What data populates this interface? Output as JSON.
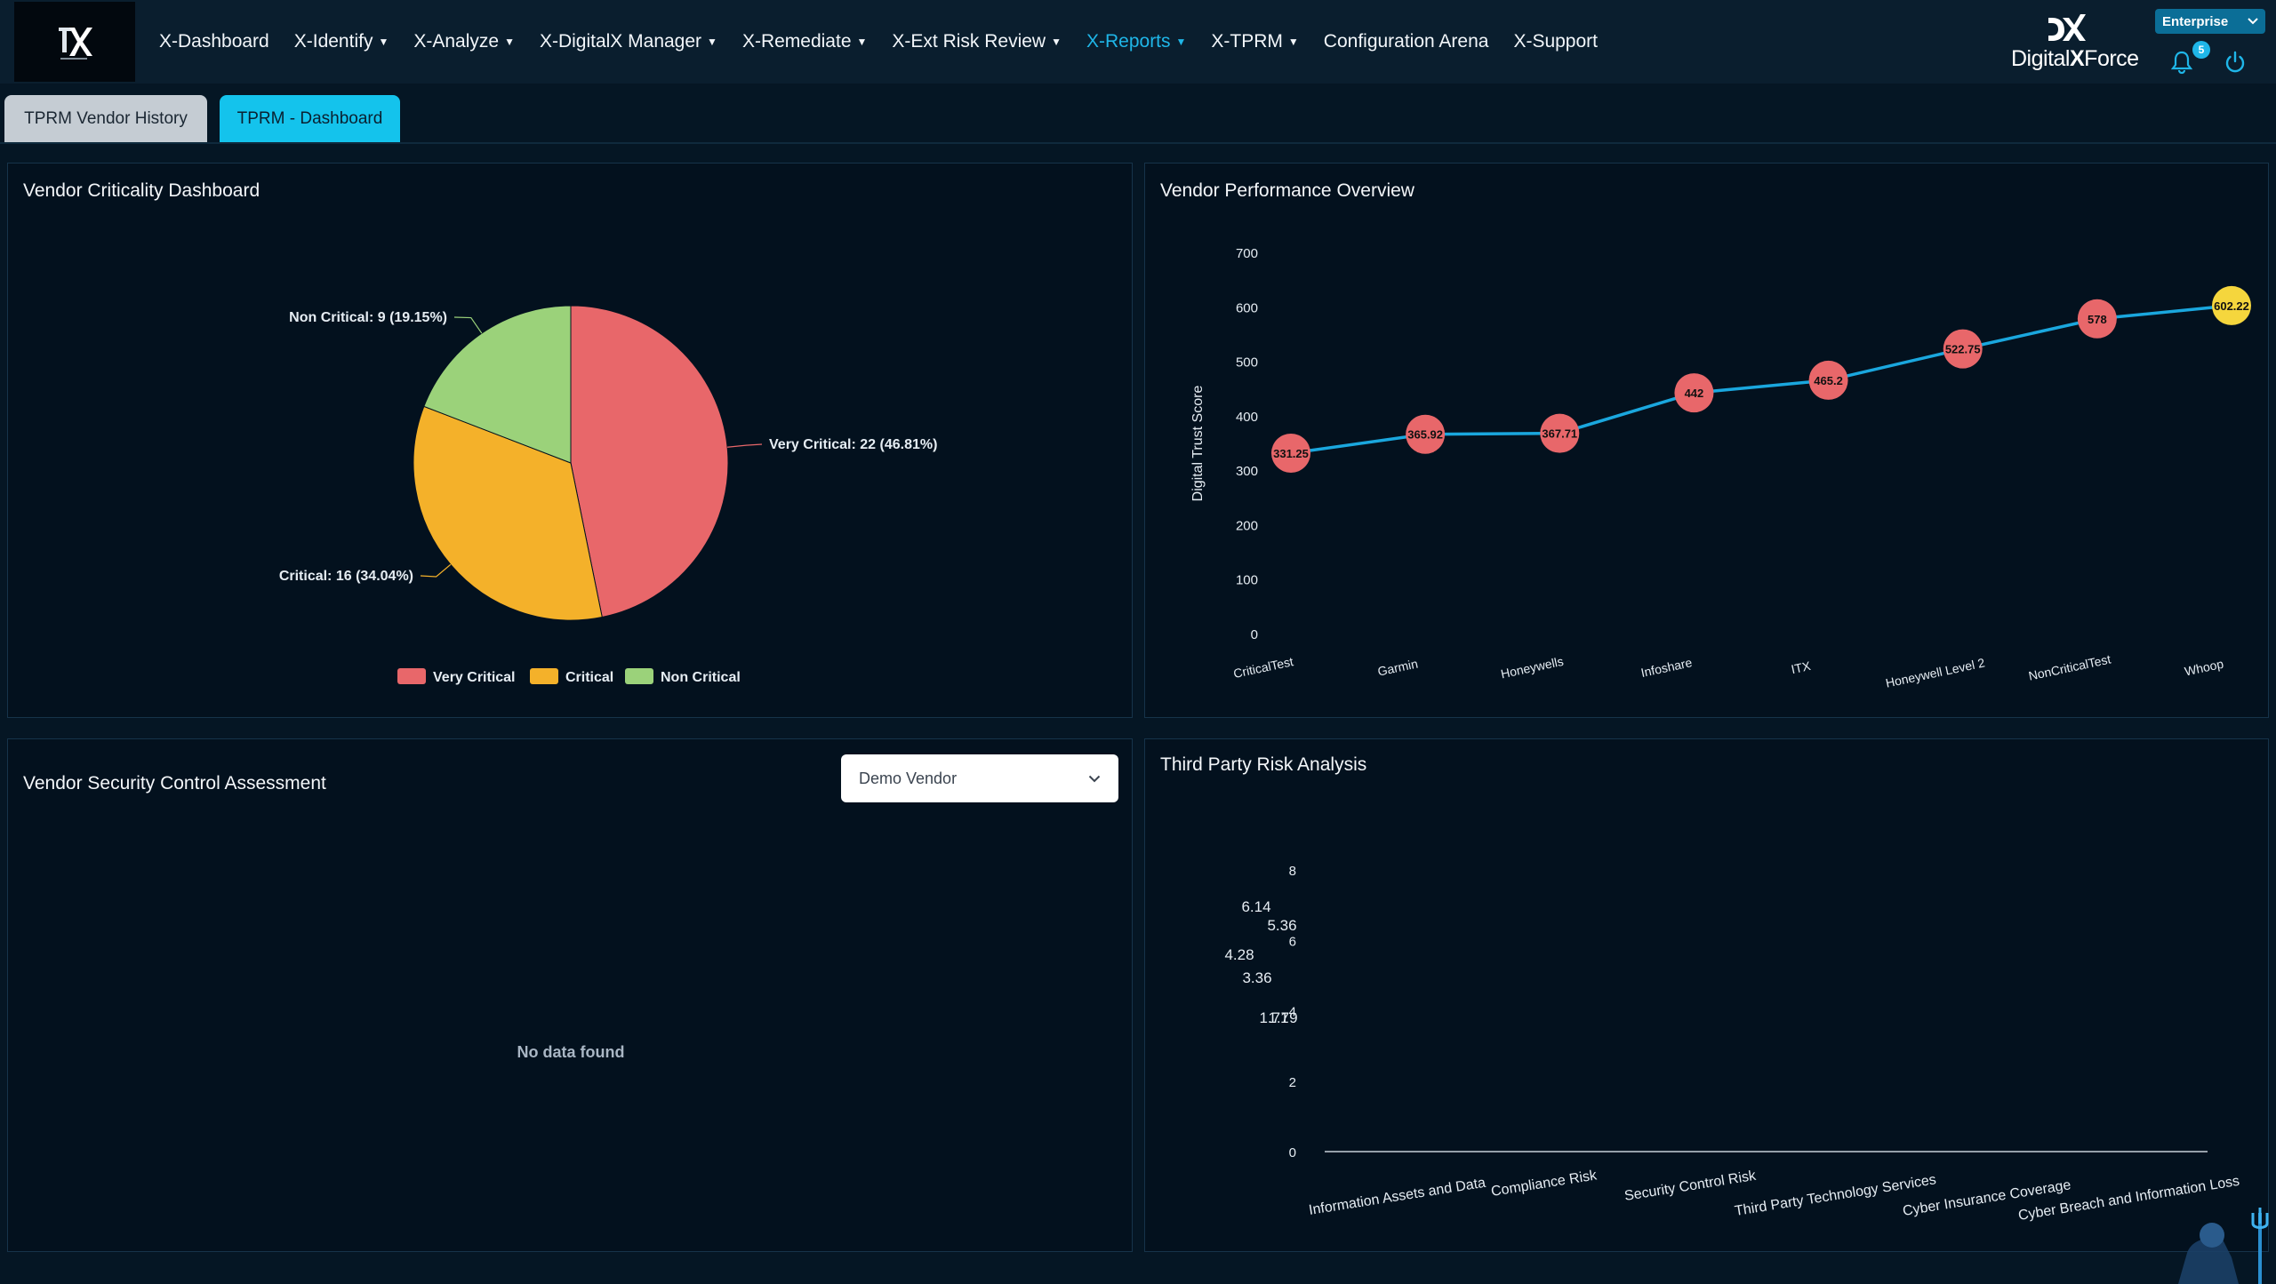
{
  "nav": {
    "items": [
      {
        "label": "X-Dashboard",
        "dropdown": false,
        "active": false
      },
      {
        "label": "X-Identify",
        "dropdown": true,
        "active": false
      },
      {
        "label": "X-Analyze",
        "dropdown": true,
        "active": false
      },
      {
        "label": "X-DigitalX Manager",
        "dropdown": true,
        "active": false
      },
      {
        "label": "X-Remediate",
        "dropdown": true,
        "active": false
      },
      {
        "label": "X-Ext Risk Review",
        "dropdown": true,
        "active": false
      },
      {
        "label": "X-Reports",
        "dropdown": true,
        "active": true
      },
      {
        "label": "X-TPRM",
        "dropdown": true,
        "active": false
      },
      {
        "label": "Configuration Arena",
        "dropdown": false,
        "active": false
      },
      {
        "label": "X-Support",
        "dropdown": false,
        "active": false
      }
    ],
    "brand_prefix": "Digital",
    "brand_x": "X",
    "brand_suffix": "Force",
    "environment": "Enterprise",
    "notification_count": "5"
  },
  "tabs": {
    "history": "TPRM Vendor History",
    "dashboard": "TPRM - Dashboard"
  },
  "panels": {
    "criticality": {
      "title": "Vendor Criticality Dashboard",
      "legend": [
        "Very Critical",
        "Critical",
        "Non Critical"
      ]
    },
    "performance": {
      "title": "Vendor Performance Overview"
    },
    "security": {
      "title": "Vendor Security Control Assessment",
      "vendor_selected": "Demo Vendor",
      "empty_message": "No data found"
    },
    "risk": {
      "title": "Third Party Risk Analysis"
    }
  },
  "colors": {
    "very_critical": "#e8676a",
    "critical": "#f4b12a",
    "non_critical": "#9bd27a",
    "line": "#1aa7de",
    "accent": "#14c3ec",
    "highlight_point": "#f5d63d"
  },
  "chart_data": [
    {
      "type": "pie",
      "title": "Vendor Criticality Dashboard",
      "slices": [
        {
          "name": "Very Critical",
          "value": 22,
          "percent": 46.81,
          "label": "Very Critical: 22 (46.81%)"
        },
        {
          "name": "Critical",
          "value": 16,
          "percent": 34.04,
          "label": "Critical: 16 (34.04%)"
        },
        {
          "name": "Non Critical",
          "value": 9,
          "percent": 19.15,
          "label": "Non Critical: 9 (19.15%)"
        }
      ],
      "legend_position": "bottom"
    },
    {
      "type": "line",
      "title": "Vendor Performance Overview",
      "ylabel": "Digital Trust Score",
      "ylim": [
        0,
        700
      ],
      "yticks": [
        0,
        100,
        200,
        300,
        400,
        500,
        600,
        700
      ],
      "categories": [
        "CriticalTest",
        "Garmin",
        "Honeywells",
        "Infoshare",
        "ITX",
        "Honeywell Level 2",
        "NonCriticalTest",
        "Whoop"
      ],
      "values": [
        331.25,
        365.92,
        367.71,
        442,
        465.2,
        522.75,
        578,
        602.22
      ],
      "labels": [
        "331.25",
        "365.92",
        "367.71",
        "442",
        "465.2",
        "522.75",
        "578",
        "602.22"
      ]
    },
    {
      "type": "bar",
      "title": "Third Party Risk Analysis",
      "ylim": [
        0,
        8
      ],
      "yticks": [
        0,
        2,
        4,
        6,
        8
      ],
      "categories": [
        "Information Assets and Data",
        "Compliance Risk",
        "Security Control Risk",
        "Third Party Technology Services",
        "Cyber Insurance Coverage",
        "Cyber Breach and Information Loss"
      ],
      "floating_labels": [
        "6.14",
        "5.36",
        "4.28",
        "3.36",
        "1.71",
        "1.79"
      ]
    }
  ]
}
